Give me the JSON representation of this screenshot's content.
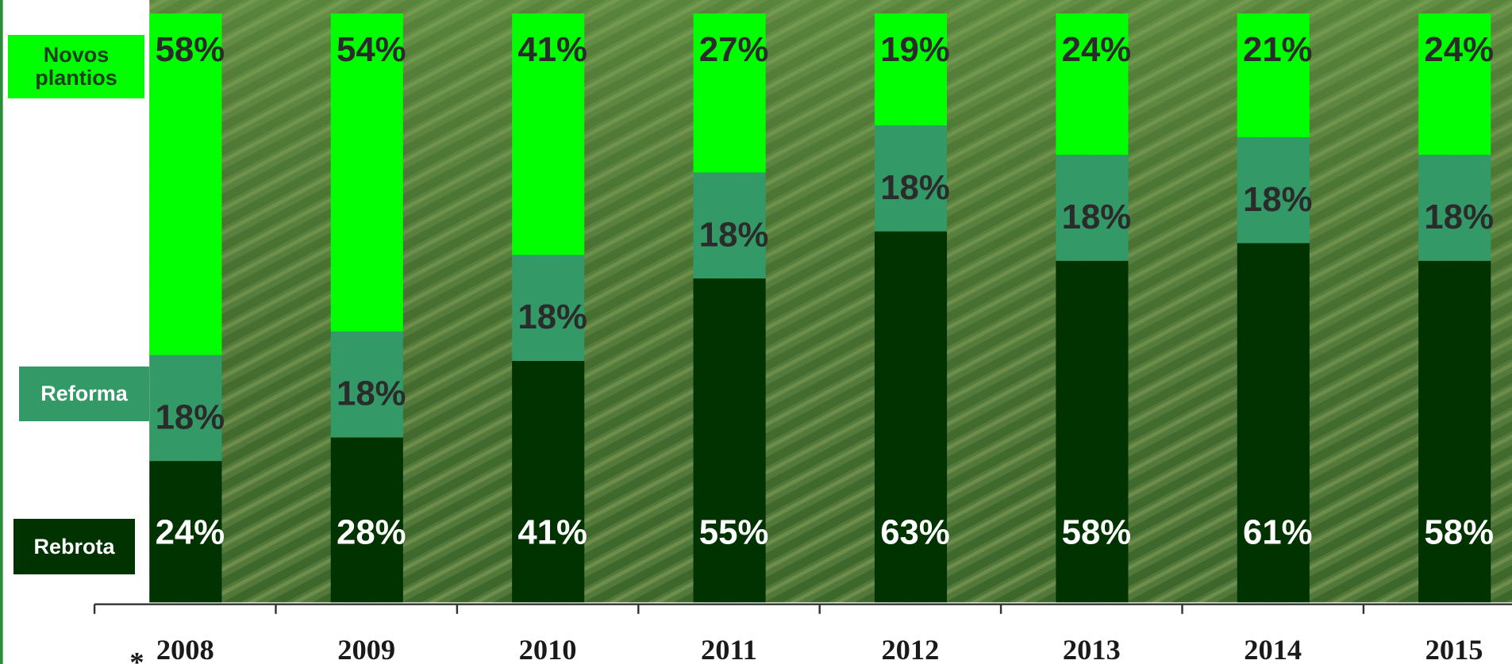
{
  "chart_data": {
    "type": "stacked_bar",
    "categories": [
      "2008",
      "2009",
      "2010",
      "2011",
      "2012",
      "2013",
      "2014",
      "2015"
    ],
    "annotation": "*",
    "series": [
      {
        "name": "Rebrota",
        "color": "#003300",
        "values": [
          24,
          28,
          41,
          55,
          63,
          58,
          61,
          58
        ],
        "value_labels": [
          "24%",
          "28%",
          "41%",
          "55%",
          "63%",
          "58%",
          "61%",
          "58%"
        ]
      },
      {
        "name": "Reforma",
        "color": "#339966",
        "values": [
          18,
          18,
          18,
          18,
          18,
          18,
          18,
          18
        ],
        "value_labels": [
          "18%",
          "18%",
          "18%",
          "18%",
          "18%",
          "18%",
          "18%",
          "18%"
        ]
      },
      {
        "name": "Novos plantios",
        "color": "#00ff00",
        "values": [
          58,
          54,
          41,
          27,
          19,
          24,
          21,
          24
        ],
        "value_labels": [
          "58%",
          "54%",
          "41%",
          "27%",
          "19%",
          "24%",
          "21%",
          "24%"
        ]
      }
    ]
  }
}
